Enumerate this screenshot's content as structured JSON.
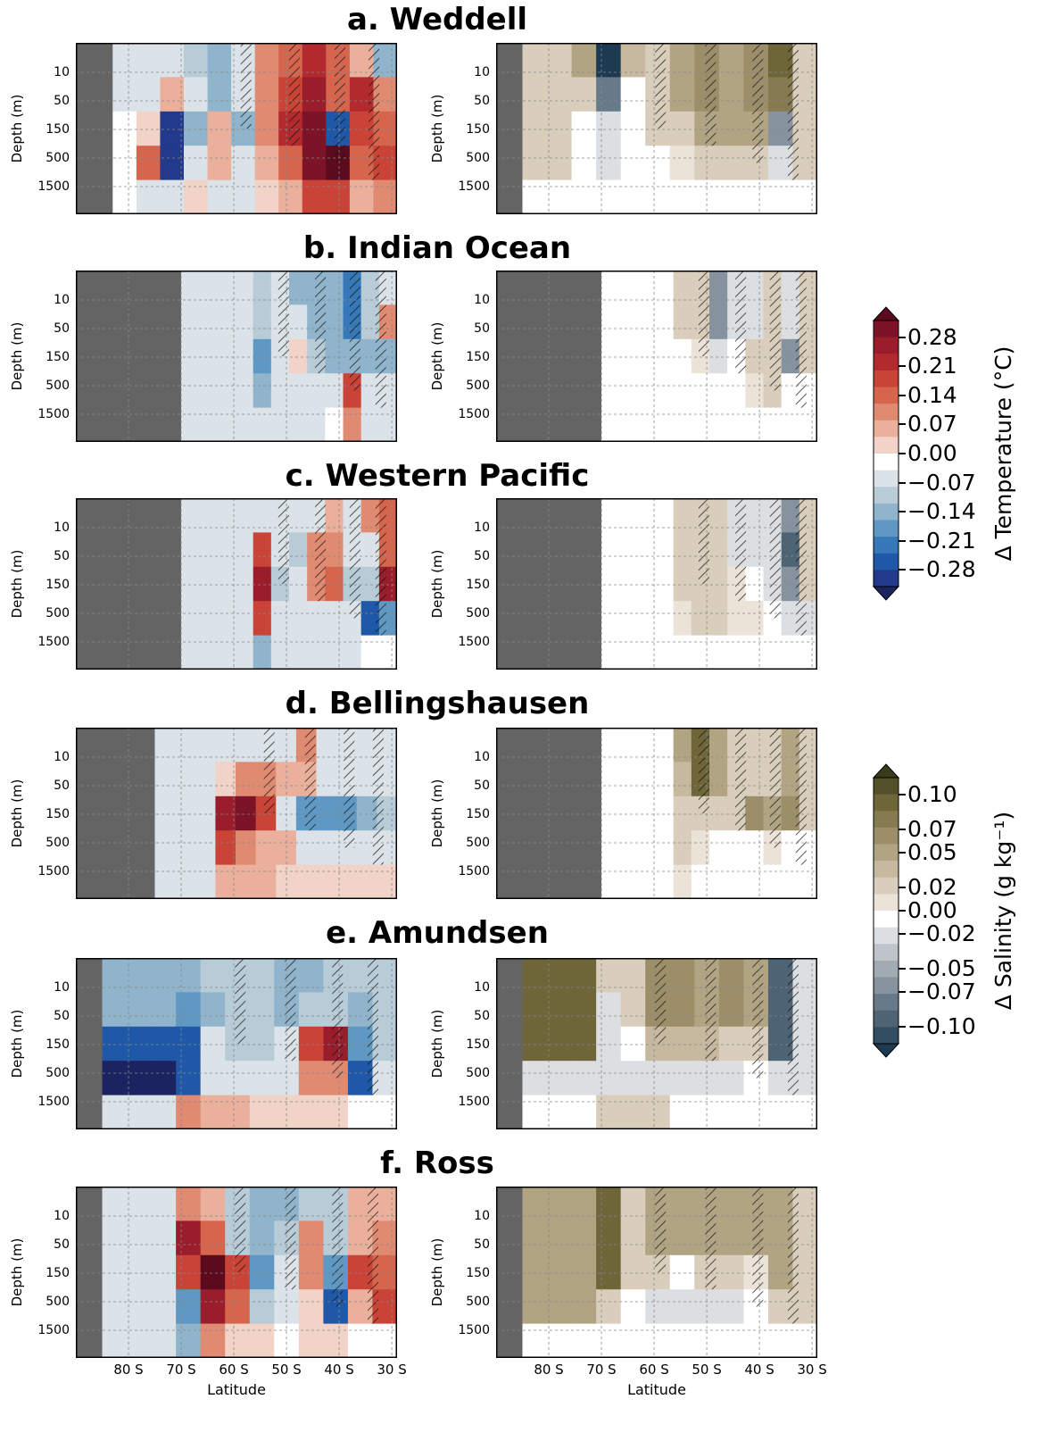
{
  "chart_data": {
    "type": "heatmap",
    "panels": [
      {
        "title": "a. Weddell",
        "temperature": {
          "land_end_lat": -83,
          "cells": [
            [
              -0.02,
              -0.03,
              -0.04,
              -0.08,
              -0.1,
              -0.04,
              0.08,
              0.12,
              0.16,
              0.1,
              0.05,
              -0.12
            ],
            [
              -0.02,
              -0.02,
              0.05,
              -0.06,
              -0.1,
              -0.06,
              0.08,
              0.14,
              0.2,
              0.12,
              0.16,
              0.07
            ],
            [
              0.0,
              0.03,
              -0.24,
              -0.12,
              0.06,
              -0.1,
              0.08,
              0.16,
              0.22,
              -0.2,
              0.14,
              0.1
            ],
            [
              0.0,
              0.1,
              -0.22,
              -0.06,
              0.04,
              -0.06,
              0.05,
              0.1,
              0.24,
              0.28,
              0.12,
              0.14
            ],
            [
              0.0,
              -0.02,
              -0.04,
              0.02,
              -0.03,
              -0.04,
              0.02,
              0.06,
              0.14,
              0.14,
              0.04,
              0.07
            ]
          ]
        },
        "salinity": {
          "land_end_lat": -85,
          "cells": [
            [
              0.02,
              0.02,
              0.04,
              -0.1,
              0.03,
              0.02,
              0.04,
              0.05,
              0.04,
              0.05,
              0.07,
              0.02
            ],
            [
              0.02,
              0.02,
              0.02,
              -0.06,
              0.0,
              0.02,
              0.04,
              0.05,
              0.04,
              0.05,
              0.06,
              0.02
            ],
            [
              0.02,
              0.02,
              0.0,
              -0.02,
              0.0,
              0.02,
              0.02,
              0.04,
              0.04,
              0.04,
              -0.05,
              0.02
            ],
            [
              0.02,
              0.02,
              0.0,
              -0.01,
              0.0,
              0.0,
              0.01,
              0.02,
              0.02,
              0.02,
              -0.02,
              0.02
            ],
            [
              0.0,
              0.0,
              0.0,
              0.0,
              0.0,
              0.0,
              0.0,
              0.0,
              0.0,
              0.0,
              0.0,
              0.0
            ]
          ]
        }
      },
      {
        "title": "b. Indian Ocean",
        "temperature": {
          "land_end_lat": -70,
          "cells": [
            [
              -0.05,
              -0.05,
              -0.05,
              -0.05,
              -0.07,
              -0.06,
              -0.1,
              -0.12,
              -0.12,
              -0.18,
              -0.08,
              -0.06
            ],
            [
              -0.05,
              -0.05,
              -0.05,
              -0.05,
              -0.07,
              -0.05,
              -0.06,
              -0.1,
              -0.12,
              -0.18,
              -0.08,
              0.07
            ],
            [
              -0.05,
              -0.05,
              -0.05,
              -0.05,
              -0.14,
              -0.06,
              0.03,
              -0.08,
              -0.1,
              -0.12,
              -0.1,
              -0.1
            ],
            [
              -0.05,
              -0.05,
              -0.05,
              -0.05,
              -0.12,
              -0.06,
              -0.03,
              -0.04,
              -0.05,
              0.14,
              -0.04,
              -0.05
            ],
            [
              -0.05,
              -0.05,
              -0.05,
              -0.05,
              -0.03,
              -0.02,
              -0.02,
              -0.02,
              0.0,
              0.07,
              -0.02,
              -0.02
            ]
          ]
        },
        "salinity": {
          "land_end_lat": -70,
          "cells": [
            [
              0.0,
              0.0,
              0.0,
              0.0,
              0.02,
              0.02,
              -0.05,
              -0.02,
              -0.01,
              0.02,
              -0.02,
              0.02
            ],
            [
              0.0,
              0.0,
              0.0,
              0.0,
              0.02,
              0.02,
              -0.05,
              -0.02,
              -0.01,
              0.02,
              -0.02,
              0.02
            ],
            [
              0.0,
              0.0,
              0.0,
              0.0,
              0.0,
              0.01,
              -0.02,
              0.0,
              0.02,
              0.02,
              -0.05,
              0.02
            ],
            [
              0.0,
              0.0,
              0.0,
              0.0,
              0.0,
              0.0,
              0.0,
              0.0,
              0.01,
              0.02,
              0.0,
              0.0
            ],
            [
              0.0,
              0.0,
              0.0,
              0.0,
              0.0,
              0.0,
              0.0,
              0.0,
              0.0,
              0.0,
              0.0,
              0.0
            ]
          ]
        }
      },
      {
        "title": "c. Western Pacific",
        "temperature": {
          "land_end_lat": -70,
          "cells": [
            [
              -0.05,
              -0.05,
              -0.05,
              -0.05,
              -0.02,
              -0.03,
              -0.06,
              -0.06,
              0.05,
              -0.06,
              0.07,
              0.1
            ],
            [
              -0.05,
              -0.05,
              -0.05,
              -0.05,
              0.14,
              -0.05,
              -0.07,
              0.07,
              0.07,
              -0.06,
              -0.05,
              0.1
            ],
            [
              -0.05,
              -0.05,
              -0.05,
              -0.05,
              0.21,
              -0.07,
              -0.06,
              0.07,
              0.1,
              -0.07,
              -0.07,
              0.21
            ],
            [
              -0.05,
              -0.05,
              -0.05,
              -0.05,
              0.14,
              -0.06,
              -0.05,
              -0.04,
              -0.05,
              -0.05,
              -0.21,
              -0.14
            ],
            [
              -0.05,
              -0.05,
              -0.05,
              -0.05,
              -0.1,
              -0.05,
              -0.03,
              -0.02,
              -0.02,
              -0.02,
              0.0,
              0.0
            ]
          ]
        },
        "salinity": {
          "land_end_lat": -70,
          "cells": [
            [
              0.0,
              0.0,
              0.0,
              0.0,
              0.02,
              0.02,
              0.02,
              -0.02,
              -0.02,
              -0.02,
              -0.05,
              0.02
            ],
            [
              0.0,
              0.0,
              0.0,
              0.0,
              0.02,
              0.02,
              0.02,
              -0.02,
              -0.02,
              -0.02,
              -0.07,
              0.02
            ],
            [
              0.0,
              0.0,
              0.0,
              0.0,
              0.02,
              0.02,
              0.02,
              0.01,
              0.0,
              -0.02,
              -0.05,
              0.02
            ],
            [
              0.0,
              0.0,
              0.0,
              0.0,
              0.01,
              0.02,
              0.02,
              0.01,
              0.01,
              0.0,
              -0.02,
              -0.02
            ],
            [
              0.0,
              0.0,
              0.0,
              0.0,
              0.0,
              0.0,
              0.0,
              0.0,
              0.0,
              0.0,
              0.0,
              0.0
            ]
          ]
        }
      },
      {
        "title": "d. Bellingshausen",
        "temperature": {
          "land_end_lat": -75,
          "cells": [
            [
              -0.05,
              -0.05,
              -0.05,
              -0.03,
              -0.05,
              -0.06,
              -0.04,
              0.07,
              -0.03,
              -0.06,
              -0.04,
              -0.03
            ],
            [
              -0.05,
              -0.05,
              -0.05,
              0.02,
              0.07,
              0.07,
              0.05,
              0.05,
              -0.05,
              -0.06,
              -0.06,
              -0.04
            ],
            [
              -0.05,
              -0.05,
              -0.05,
              0.21,
              0.24,
              0.14,
              -0.05,
              -0.14,
              -0.14,
              -0.14,
              -0.1,
              -0.07
            ],
            [
              -0.05,
              -0.05,
              -0.05,
              0.14,
              0.07,
              0.05,
              0.05,
              -0.05,
              -0.05,
              -0.05,
              -0.05,
              -0.05
            ],
            [
              -0.05,
              -0.05,
              -0.05,
              0.05,
              0.05,
              0.05,
              0.03,
              0.02,
              0.02,
              0.02,
              0.02,
              0.02
            ]
          ]
        },
        "salinity": {
          "land_end_lat": -70,
          "cells": [
            [
              0.0,
              0.0,
              0.0,
              0.0,
              0.04,
              0.07,
              0.04,
              0.02,
              0.02,
              0.02,
              0.04,
              0.02
            ],
            [
              0.0,
              0.0,
              0.0,
              0.0,
              0.03,
              0.07,
              0.04,
              0.02,
              0.02,
              0.02,
              0.04,
              0.02
            ],
            [
              0.0,
              0.0,
              0.0,
              0.0,
              0.02,
              0.02,
              0.02,
              0.02,
              0.05,
              0.04,
              0.05,
              0.02
            ],
            [
              0.0,
              0.0,
              0.0,
              0.0,
              0.02,
              0.01,
              0.0,
              0.0,
              0.0,
              0.01,
              0.0,
              0.0
            ],
            [
              0.0,
              0.0,
              0.0,
              0.0,
              0.01,
              0.0,
              0.0,
              0.0,
              0.0,
              0.0,
              0.0,
              0.0
            ]
          ]
        }
      },
      {
        "title": "e. Amundsen",
        "temperature": {
          "land_end_lat": -85,
          "cells": [
            [
              -0.1,
              -0.1,
              -0.1,
              -0.1,
              -0.07,
              -0.07,
              -0.07,
              -0.1,
              -0.1,
              -0.07,
              -0.07,
              -0.07
            ],
            [
              -0.12,
              -0.12,
              -0.12,
              -0.14,
              -0.12,
              -0.07,
              -0.07,
              -0.1,
              -0.07,
              -0.07,
              -0.1,
              -0.07
            ],
            [
              -0.21,
              -0.21,
              -0.21,
              -0.21,
              -0.05,
              -0.07,
              -0.07,
              -0.05,
              0.14,
              0.21,
              -0.14,
              -0.07
            ],
            [
              -0.35,
              -0.35,
              -0.35,
              -0.21,
              -0.02,
              -0.02,
              -0.02,
              -0.02,
              0.07,
              0.07,
              -0.21,
              -0.05
            ],
            [
              -0.05,
              -0.05,
              -0.05,
              0.07,
              0.05,
              0.05,
              0.03,
              0.02,
              0.02,
              0.02,
              0.0,
              0.0
            ]
          ]
        },
        "salinity": {
          "land_end_lat": -85,
          "cells": [
            [
              0.07,
              0.07,
              0.07,
              0.02,
              0.02,
              0.05,
              0.05,
              0.04,
              0.05,
              0.04,
              -0.07,
              -0.02
            ],
            [
              0.07,
              0.07,
              0.07,
              -0.01,
              0.02,
              0.05,
              0.05,
              0.04,
              0.05,
              0.04,
              -0.07,
              -0.02
            ],
            [
              0.07,
              0.07,
              0.07,
              -0.02,
              0.0,
              0.03,
              0.03,
              0.03,
              0.02,
              0.02,
              -0.07,
              -0.02
            ],
            [
              -0.02,
              -0.02,
              -0.02,
              -0.02,
              -0.01,
              -0.01,
              -0.01,
              -0.01,
              -0.01,
              0.0,
              -0.02,
              -0.02
            ],
            [
              0.0,
              0.0,
              0.0,
              0.02,
              0.02,
              0.02,
              0.0,
              0.0,
              0.0,
              0.0,
              0.0,
              0.0
            ]
          ]
        }
      },
      {
        "title": "f. Ross",
        "temperature": {
          "land_end_lat": -85,
          "cells": [
            [
              -0.05,
              -0.05,
              -0.05,
              0.07,
              0.05,
              -0.07,
              -0.1,
              -0.1,
              -0.07,
              -0.07,
              0.05,
              0.05
            ],
            [
              -0.05,
              -0.05,
              -0.05,
              0.21,
              0.1,
              -0.07,
              -0.1,
              -0.07,
              0.07,
              -0.07,
              0.05,
              0.07
            ],
            [
              -0.05,
              -0.05,
              -0.05,
              0.14,
              0.28,
              0.14,
              -0.14,
              -0.05,
              0.07,
              -0.14,
              0.14,
              0.1
            ],
            [
              -0.03,
              -0.05,
              -0.05,
              -0.14,
              0.21,
              0.1,
              -0.07,
              -0.03,
              0.03,
              -0.21,
              0.05,
              0.14
            ],
            [
              -0.05,
              -0.05,
              -0.05,
              -0.1,
              0.07,
              0.03,
              0.02,
              0.0,
              0.02,
              0.02,
              0.0,
              0.0
            ]
          ]
        },
        "salinity": {
          "land_end_lat": -85,
          "cells": [
            [
              0.04,
              0.04,
              0.04,
              0.07,
              0.02,
              0.04,
              0.04,
              0.04,
              0.04,
              0.04,
              0.04,
              0.02
            ],
            [
              0.04,
              0.04,
              0.04,
              0.07,
              0.02,
              0.04,
              0.04,
              0.04,
              0.04,
              0.04,
              0.04,
              0.02
            ],
            [
              0.04,
              0.04,
              0.04,
              0.07,
              0.02,
              0.02,
              0.0,
              0.02,
              0.02,
              0.01,
              0.04,
              0.02
            ],
            [
              0.04,
              0.04,
              0.04,
              0.02,
              0.0,
              -0.01,
              -0.01,
              -0.01,
              -0.01,
              0.0,
              0.02,
              0.02
            ],
            [
              0.0,
              0.0,
              0.0,
              0.0,
              0.0,
              0.0,
              0.0,
              0.0,
              0.0,
              0.0,
              0.0,
              0.0
            ]
          ]
        }
      }
    ],
    "x_ticks": [
      "80 S",
      "70 S",
      "60 S",
      "50 S",
      "40 S",
      "30 S"
    ],
    "x_tick_values": [
      -80,
      -70,
      -60,
      -50,
      -40,
      -30
    ],
    "xlim": [
      -90,
      -29
    ],
    "xlabel": "Latitude",
    "y_ticks": [
      "10",
      "50",
      "150",
      "500",
      "1500"
    ],
    "ylabel": "Depth (m)",
    "colorbars": [
      {
        "title": "Δ Temperature (°C)",
        "ticks": [
          "0.28",
          "0.21",
          "0.14",
          "0.07",
          "0.00",
          "−0.07",
          "−0.14",
          "−0.21",
          "−0.28"
        ],
        "tick_values": [
          0.28,
          0.21,
          0.14,
          0.07,
          0.0,
          -0.07,
          -0.14,
          -0.21,
          -0.28
        ],
        "colors_top_to_bottom": [
          "#5c0a1e",
          "#7c1326",
          "#9a1d2b",
          "#b32a2e",
          "#c94436",
          "#d6654e",
          "#e08a72",
          "#eab09c",
          "#f2d3c8",
          "#ffffff",
          "#dbe3e8",
          "#b8ccd8",
          "#8fb4cc",
          "#5f98c2",
          "#3678b8",
          "#1f58a6",
          "#22398c",
          "#1b2460"
        ]
      },
      {
        "title": "Δ Salinity (g kg⁻¹)",
        "ticks": [
          "0.10",
          "0.07",
          "0.05",
          "0.02",
          "0.00",
          "−0.02",
          "−0.05",
          "−0.07",
          "−0.10"
        ],
        "tick_values": [
          0.1,
          0.07,
          0.05,
          0.02,
          0.0,
          -0.02,
          -0.05,
          -0.07,
          -0.1
        ],
        "colors_top_to_bottom": [
          "#3a3a1c",
          "#54502a",
          "#6e6639",
          "#857a50",
          "#9b8e68",
          "#b1a483",
          "#c6b99f",
          "#d9cdbb",
          "#ebe3d8",
          "#ffffff",
          "#dcdfe2",
          "#bec4ca",
          "#a2abb4",
          "#86939e",
          "#677a89",
          "#4e6475",
          "#334e62",
          "#1c3a52"
        ]
      }
    ],
    "land_color": "#646464"
  }
}
